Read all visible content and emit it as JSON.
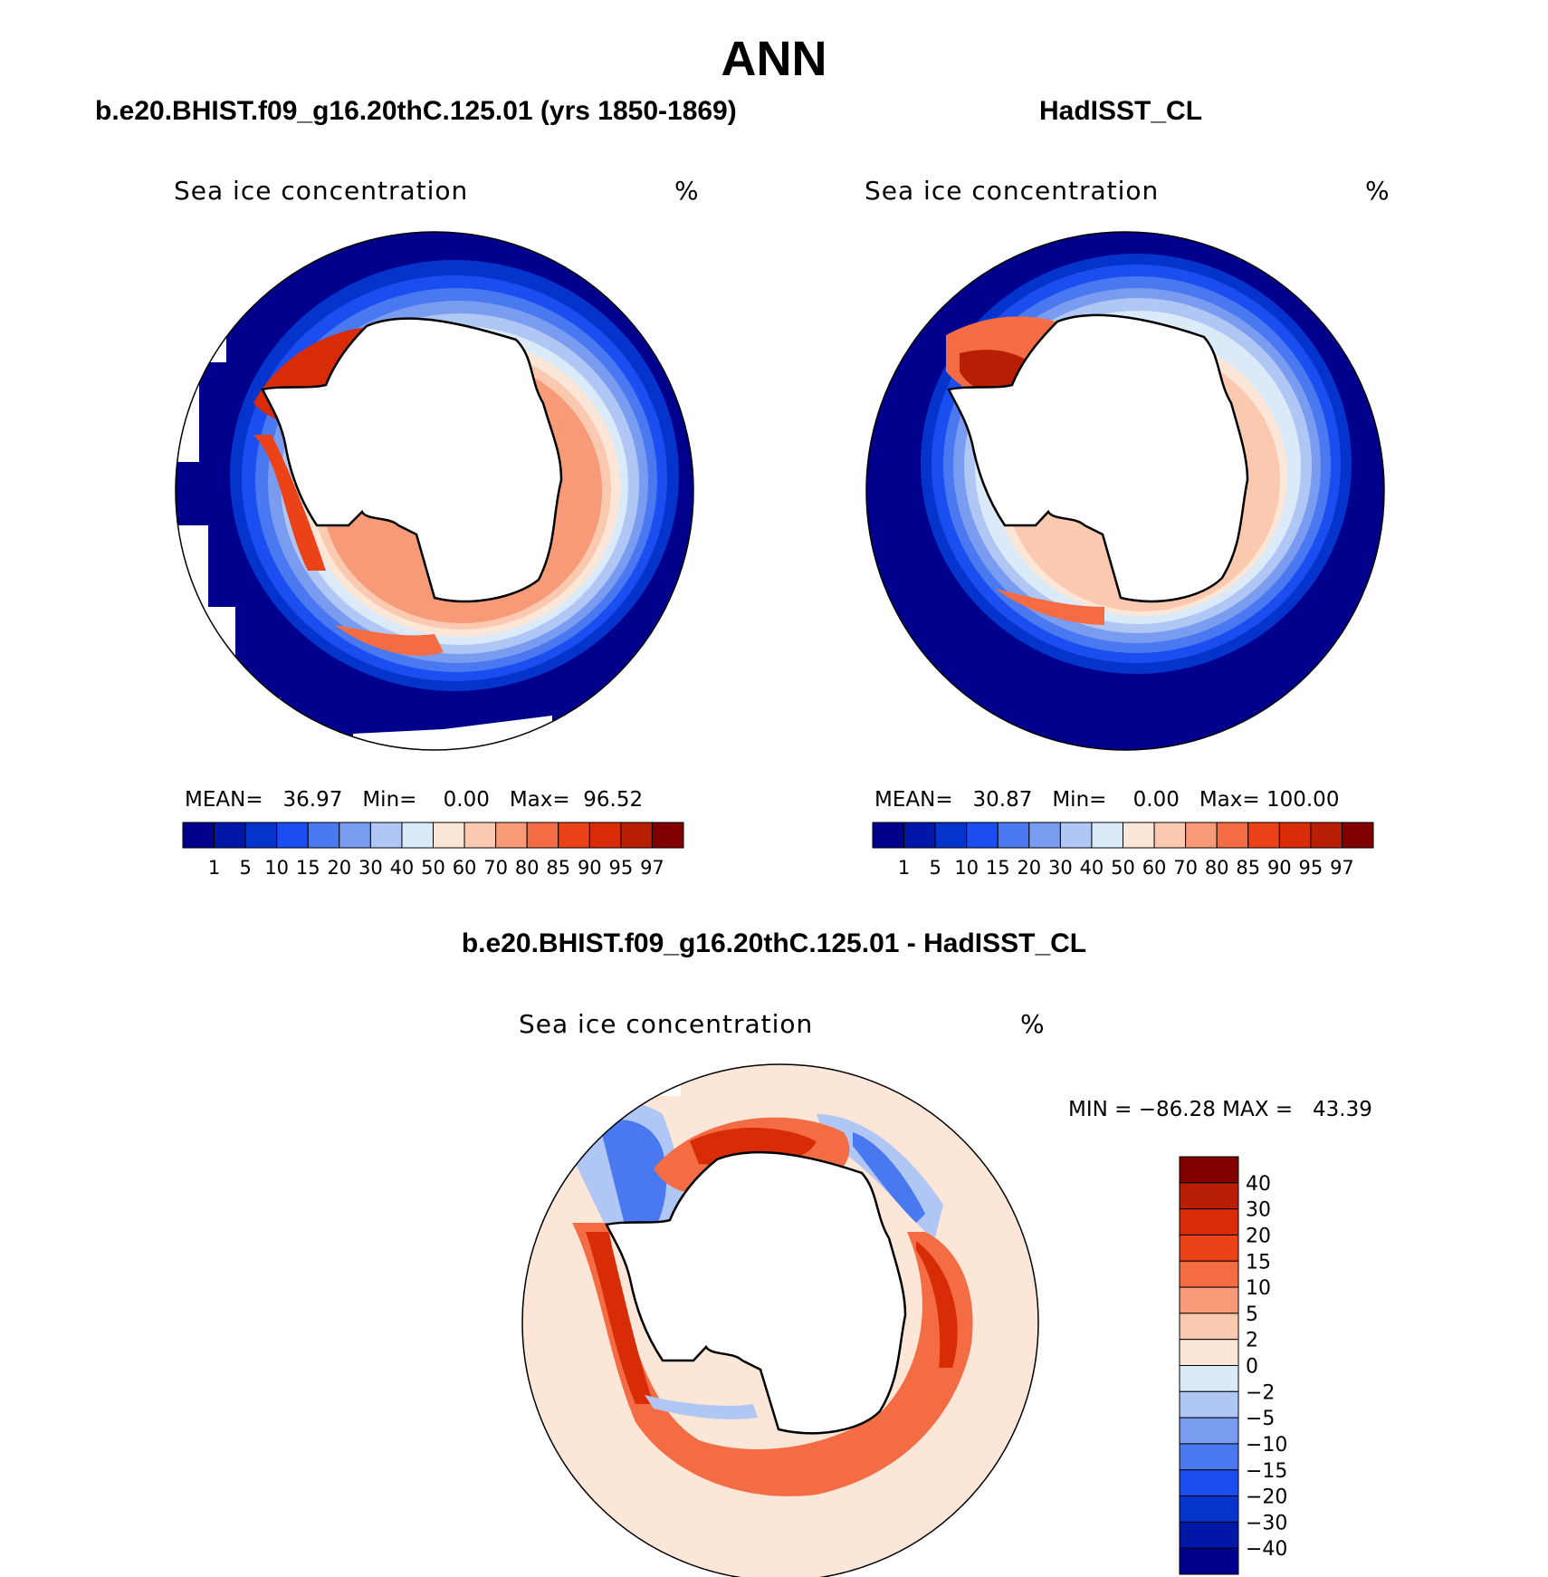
{
  "title": "ANN",
  "panels": [
    {
      "title": "b.e20.BHIST.f09_g16.20thC.125.01 (yrs 1850-1869)",
      "variable": "Sea ice concentration",
      "units": "%",
      "stats": {
        "mean_label": "MEAN=",
        "mean": "36.97",
        "min_label": "Min=",
        "min": "0.00",
        "max_label": "Max=",
        "max": "96.52"
      }
    },
    {
      "title": "HadISST_CL",
      "variable": "Sea ice concentration",
      "units": "%",
      "stats": {
        "mean_label": "MEAN=",
        "mean": "30.87",
        "min_label": "Min=",
        "min": "0.00",
        "max_label": "Max=",
        "max": "100.00"
      }
    }
  ],
  "diff_panel": {
    "title": "b.e20.BHIST.f09_g16.20thC.125.01 - HadISST_CL",
    "variable": "Sea ice concentration",
    "units": "%",
    "min_label": "MIN =",
    "min": "−86.28",
    "max_label": "MAX =",
    "max": "43.39"
  },
  "colorbar_abs": {
    "labels": [
      "1",
      "5",
      "10",
      "15",
      "20",
      "30",
      "40",
      "50",
      "60",
      "70",
      "80",
      "85",
      "90",
      "95",
      "97"
    ],
    "colors": [
      "#00008c",
      "#0017a8",
      "#0434cc",
      "#1a4ef0",
      "#4a78f0",
      "#7a9cf0",
      "#b0c6f4",
      "#daeaf8",
      "#fce6d8",
      "#fbc8b0",
      "#f79a78",
      "#f46c44",
      "#ec4218",
      "#d82c06",
      "#b81e04",
      "#800000"
    ]
  },
  "colorbar_diff": {
    "labels": [
      "40",
      "30",
      "20",
      "15",
      "10",
      "5",
      "2",
      "0",
      "−2",
      "−5",
      "−10",
      "−15",
      "−20",
      "−30",
      "−40"
    ],
    "colors": [
      "#800000",
      "#b81e04",
      "#d82c06",
      "#ec4218",
      "#f46c44",
      "#f79a78",
      "#fbc8b0",
      "#fce6d8",
      "#daeaf8",
      "#b0c6f4",
      "#7a9cf0",
      "#4a78f0",
      "#1a4ef0",
      "#0434cc",
      "#0017a8",
      "#00008c"
    ]
  }
}
